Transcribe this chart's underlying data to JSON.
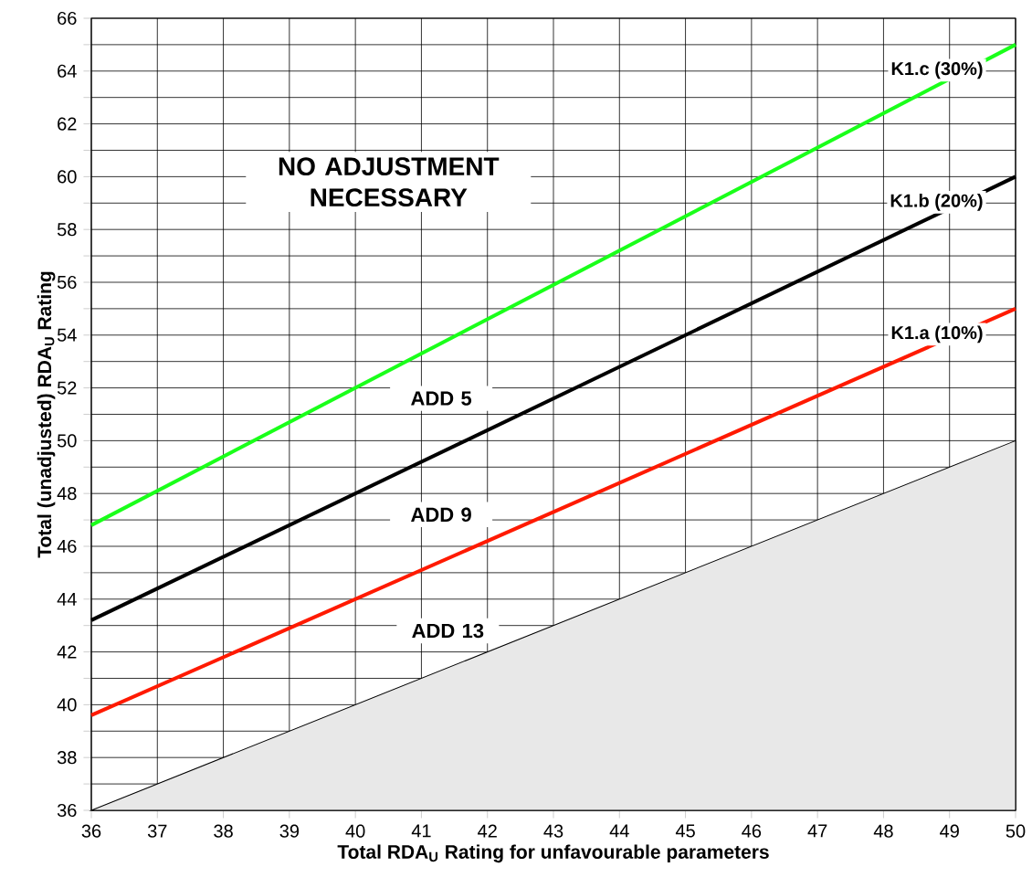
{
  "chart_data": {
    "type": "line",
    "xlabel": "Total RDA$_{U}$ Rating for unfavourable parameters",
    "ylabel": "Total (unadjusted) RDA$_{U}$ Rating",
    "xlim": [
      36,
      50
    ],
    "ylim": [
      36,
      66
    ],
    "xticks": [
      36,
      37,
      38,
      39,
      40,
      41,
      42,
      43,
      44,
      45,
      46,
      47,
      48,
      49,
      50
    ],
    "yticks": [
      36,
      {
        "value": 37,
        "label": null
      },
      38,
      {
        "value": 39,
        "label": null
      },
      40,
      {
        "value": 41,
        "label": null
      },
      42,
      {
        "value": 43,
        "label": null
      },
      44,
      {
        "value": 45,
        "label": null
      },
      46,
      {
        "value": 47,
        "label": null
      },
      48,
      {
        "value": 49,
        "label": null
      },
      50,
      {
        "value": 51,
        "label": null
      },
      52,
      {
        "value": 53,
        "label": null
      },
      54,
      {
        "value": 55,
        "label": null
      },
      56,
      {
        "value": 57,
        "label": null
      },
      58,
      {
        "value": 59,
        "label": null
      },
      60,
      {
        "value": 61,
        "label": null
      },
      62,
      {
        "value": 63,
        "label": null
      },
      64,
      {
        "value": 65,
        "label": null
      },
      66
    ],
    "grid": true,
    "x": [
      36,
      50
    ],
    "series": [
      {
        "type": "area",
        "color": "#e8e8e8",
        "values": [
          36,
          50
        ]
      },
      {
        "name": "K1.a (10%)",
        "color": "#ff1a00",
        "values": [
          39.6,
          55
        ]
      },
      {
        "name": "K1.b (20%)",
        "color": "#000000",
        "values": [
          43.2,
          60
        ]
      },
      {
        "name": "K1.c (30%)",
        "color": "#1aff1a",
        "values": [
          46.8,
          65
        ]
      }
    ],
    "annotations": [
      "NO ADJUSTMENT NECESSARY",
      "ADD 5",
      "ADD 9",
      "ADD 13"
    ]
  }
}
